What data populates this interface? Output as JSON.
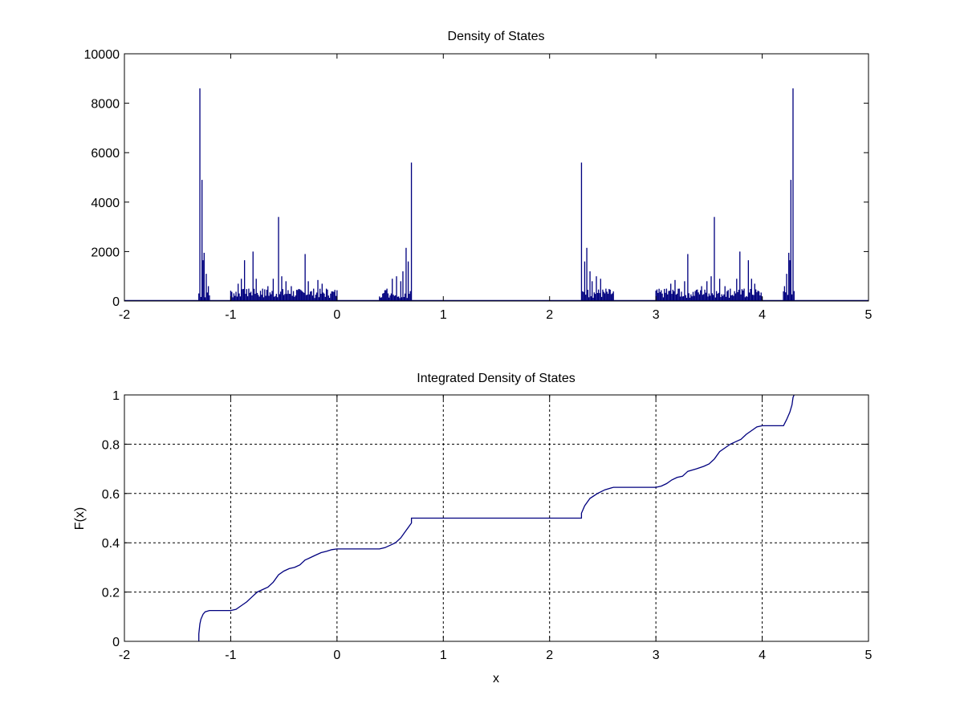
{
  "colors": {
    "line": "#00007f",
    "grid": "#000000",
    "axes": "#000000",
    "background": "#ffffff"
  },
  "chart_data": [
    {
      "type": "bar",
      "title": "Density of States",
      "xlabel": "",
      "ylabel": "",
      "xlim": [
        -2,
        5
      ],
      "ylim": [
        0,
        10000
      ],
      "xticks": [
        -2,
        -1,
        0,
        1,
        2,
        3,
        4,
        5
      ],
      "xtick_labels": [
        "-2",
        "-1",
        "0",
        "1",
        "2",
        "3",
        "4",
        "5"
      ],
      "yticks": [
        0,
        2000,
        4000,
        6000,
        8000,
        10000
      ],
      "ytick_labels": [
        "0",
        "2000",
        "4000",
        "6000",
        "8000",
        "10000"
      ],
      "grid": false,
      "bin_width": 0.01,
      "peaks": [
        {
          "x": -1.29,
          "y": 8600
        },
        {
          "x": -1.27,
          "y": 4900
        },
        {
          "x": -1.26,
          "y": 1650
        },
        {
          "x": -1.25,
          "y": 1950
        },
        {
          "x": -1.23,
          "y": 1100
        },
        {
          "x": -1.21,
          "y": 600
        },
        {
          "x": -0.97,
          "y": 300
        },
        {
          "x": -0.93,
          "y": 700
        },
        {
          "x": -0.9,
          "y": 900
        },
        {
          "x": -0.87,
          "y": 1650
        },
        {
          "x": -0.83,
          "y": 500
        },
        {
          "x": -0.79,
          "y": 2000
        },
        {
          "x": -0.76,
          "y": 900
        },
        {
          "x": -0.7,
          "y": 500
        },
        {
          "x": -0.65,
          "y": 600
        },
        {
          "x": -0.6,
          "y": 900
        },
        {
          "x": -0.55,
          "y": 3400
        },
        {
          "x": -0.52,
          "y": 1000
        },
        {
          "x": -0.48,
          "y": 800
        },
        {
          "x": -0.43,
          "y": 600
        },
        {
          "x": -0.38,
          "y": 450
        },
        {
          "x": -0.3,
          "y": 1900
        },
        {
          "x": -0.27,
          "y": 800
        },
        {
          "x": -0.22,
          "y": 500
        },
        {
          "x": -0.18,
          "y": 850
        },
        {
          "x": -0.14,
          "y": 700
        },
        {
          "x": -0.1,
          "y": 500
        },
        {
          "x": -0.06,
          "y": 300
        },
        {
          "x": -0.02,
          "y": 250
        },
        {
          "x": 0.43,
          "y": 300
        },
        {
          "x": 0.47,
          "y": 500
        },
        {
          "x": 0.52,
          "y": 900
        },
        {
          "x": 0.56,
          "y": 1000
        },
        {
          "x": 0.6,
          "y": 800
        },
        {
          "x": 0.62,
          "y": 1200
        },
        {
          "x": 0.65,
          "y": 2150
        },
        {
          "x": 0.67,
          "y": 1600
        },
        {
          "x": 0.7,
          "y": 5600
        },
        {
          "x": 2.3,
          "y": 5600
        },
        {
          "x": 2.33,
          "y": 1600
        },
        {
          "x": 2.35,
          "y": 2150
        },
        {
          "x": 2.38,
          "y": 1200
        },
        {
          "x": 2.4,
          "y": 800
        },
        {
          "x": 2.44,
          "y": 1000
        },
        {
          "x": 2.48,
          "y": 900
        },
        {
          "x": 2.53,
          "y": 500
        },
        {
          "x": 2.57,
          "y": 300
        },
        {
          "x": 3.02,
          "y": 250
        },
        {
          "x": 3.06,
          "y": 300
        },
        {
          "x": 3.1,
          "y": 500
        },
        {
          "x": 3.14,
          "y": 700
        },
        {
          "x": 3.18,
          "y": 850
        },
        {
          "x": 3.22,
          "y": 500
        },
        {
          "x": 3.27,
          "y": 800
        },
        {
          "x": 3.3,
          "y": 1900
        },
        {
          "x": 3.38,
          "y": 450
        },
        {
          "x": 3.43,
          "y": 600
        },
        {
          "x": 3.48,
          "y": 800
        },
        {
          "x": 3.52,
          "y": 1000
        },
        {
          "x": 3.55,
          "y": 3400
        },
        {
          "x": 3.6,
          "y": 900
        },
        {
          "x": 3.65,
          "y": 600
        },
        {
          "x": 3.7,
          "y": 500
        },
        {
          "x": 3.76,
          "y": 900
        },
        {
          "x": 3.79,
          "y": 2000
        },
        {
          "x": 3.83,
          "y": 500
        },
        {
          "x": 3.87,
          "y": 1650
        },
        {
          "x": 3.9,
          "y": 900
        },
        {
          "x": 3.93,
          "y": 700
        },
        {
          "x": 3.97,
          "y": 300
        },
        {
          "x": 4.21,
          "y": 600
        },
        {
          "x": 4.23,
          "y": 1100
        },
        {
          "x": 4.25,
          "y": 1950
        },
        {
          "x": 4.26,
          "y": 1650
        },
        {
          "x": 4.27,
          "y": 4900
        },
        {
          "x": 4.29,
          "y": 8600
        }
      ],
      "bands": [
        [
          -1.3,
          -1.2
        ],
        [
          -1.0,
          0.0
        ],
        [
          0.4,
          0.7
        ],
        [
          2.3,
          2.6
        ],
        [
          3.0,
          4.0
        ],
        [
          4.2,
          4.3
        ]
      ]
    },
    {
      "type": "line",
      "title": "Integrated Density of States",
      "xlabel": "x",
      "ylabel": "F(x)",
      "xlim": [
        -2,
        5
      ],
      "ylim": [
        0,
        1
      ],
      "xticks": [
        -2,
        -1,
        0,
        1,
        2,
        3,
        4,
        5
      ],
      "xtick_labels": [
        "-2",
        "-1",
        "0",
        "1",
        "2",
        "3",
        "4",
        "5"
      ],
      "yticks": [
        0,
        0.2,
        0.4,
        0.6,
        0.8,
        1
      ],
      "ytick_labels": [
        "0",
        "0.2",
        "0.4",
        "0.6",
        "0.8",
        "1"
      ],
      "grid": true,
      "series": [
        {
          "points": [
            [
              -1.3,
              0
            ],
            [
              -1.3,
              0.03
            ],
            [
              -1.29,
              0.07
            ],
            [
              -1.28,
              0.09
            ],
            [
              -1.26,
              0.11
            ],
            [
              -1.24,
              0.12
            ],
            [
              -1.2,
              0.125
            ],
            [
              -1.0,
              0.125
            ],
            [
              -0.95,
              0.13
            ],
            [
              -0.9,
              0.145
            ],
            [
              -0.85,
              0.16
            ],
            [
              -0.8,
              0.18
            ],
            [
              -0.75,
              0.2
            ],
            [
              -0.7,
              0.21
            ],
            [
              -0.65,
              0.22
            ],
            [
              -0.6,
              0.24
            ],
            [
              -0.55,
              0.27
            ],
            [
              -0.5,
              0.285
            ],
            [
              -0.45,
              0.295
            ],
            [
              -0.4,
              0.3
            ],
            [
              -0.35,
              0.31
            ],
            [
              -0.3,
              0.33
            ],
            [
              -0.25,
              0.34
            ],
            [
              -0.2,
              0.35
            ],
            [
              -0.15,
              0.36
            ],
            [
              -0.1,
              0.365
            ],
            [
              -0.05,
              0.372
            ],
            [
              0.0,
              0.375
            ],
            [
              0.4,
              0.375
            ],
            [
              0.45,
              0.38
            ],
            [
              0.5,
              0.39
            ],
            [
              0.55,
              0.4
            ],
            [
              0.6,
              0.42
            ],
            [
              0.65,
              0.45
            ],
            [
              0.7,
              0.48
            ],
            [
              0.7,
              0.5
            ],
            [
              2.3,
              0.5
            ],
            [
              2.3,
              0.52
            ],
            [
              2.33,
              0.55
            ],
            [
              2.38,
              0.58
            ],
            [
              2.45,
              0.6
            ],
            [
              2.52,
              0.615
            ],
            [
              2.6,
              0.625
            ],
            [
              3.0,
              0.625
            ],
            [
              3.05,
              0.63
            ],
            [
              3.1,
              0.64
            ],
            [
              3.15,
              0.655
            ],
            [
              3.2,
              0.665
            ],
            [
              3.25,
              0.67
            ],
            [
              3.3,
              0.69
            ],
            [
              3.38,
              0.7
            ],
            [
              3.45,
              0.71
            ],
            [
              3.5,
              0.72
            ],
            [
              3.55,
              0.74
            ],
            [
              3.6,
              0.77
            ],
            [
              3.65,
              0.785
            ],
            [
              3.7,
              0.8
            ],
            [
              3.75,
              0.81
            ],
            [
              3.8,
              0.82
            ],
            [
              3.85,
              0.84
            ],
            [
              3.9,
              0.855
            ],
            [
              3.95,
              0.87
            ],
            [
              4.0,
              0.875
            ],
            [
              4.2,
              0.875
            ],
            [
              4.23,
              0.9
            ],
            [
              4.26,
              0.93
            ],
            [
              4.28,
              0.96
            ],
            [
              4.29,
              0.99
            ],
            [
              4.3,
              1.0
            ]
          ]
        }
      ]
    }
  ]
}
